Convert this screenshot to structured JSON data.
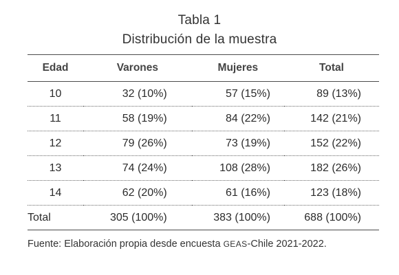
{
  "caption": {
    "label": "Tabla 1",
    "title": "Distribución de la muestra"
  },
  "table": {
    "headers": [
      "Edad",
      "Varones",
      "Mujeres",
      "Total"
    ],
    "rows": [
      [
        "10",
        "32 (10%)",
        "57 (15%)",
        "89 (13%)"
      ],
      [
        "11",
        "58 (19%)",
        "84 (22%)",
        "142 (21%)"
      ],
      [
        "12",
        "79 (26%)",
        "73 (19%)",
        "152 (22%)"
      ],
      [
        "13",
        "74 (24%)",
        "108 (28%)",
        "182 (26%)"
      ],
      [
        "14",
        "62 (20%)",
        "61 (16%)",
        "123 (18%)"
      ]
    ],
    "total_row": [
      "Total",
      "305 (100%)",
      "383 (100%)",
      "688 (100%)"
    ]
  },
  "source": {
    "prefix": "Fuente: Elaboración propia desde encuesta ",
    "acronym": "GEAS",
    "suffix": "-Chile 2021-2022."
  }
}
